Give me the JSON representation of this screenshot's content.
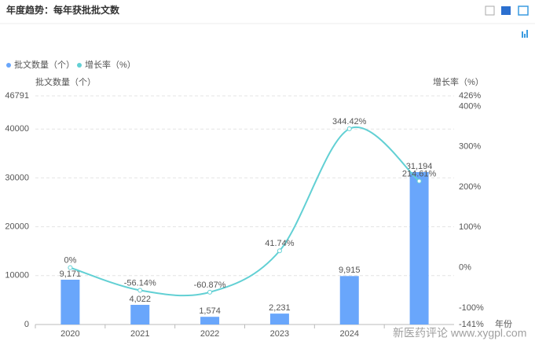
{
  "chart_data": {
    "type": "bar-line",
    "title": "年度趋势：每年获批批文数",
    "ylabel": "批文数量（个）",
    "y2label": "增长率（%）",
    "xlabel": "年份",
    "watermark": "新医药评论 www.xygpl.com",
    "categories": [
      "2020",
      "2021",
      "2022",
      "2023",
      "2024",
      null
    ],
    "series": [
      {
        "name": "批文数量（个）",
        "type": "bar",
        "color": "#69a6fb",
        "values": [
          9171,
          4022,
          1574,
          2231,
          9915,
          31194
        ],
        "value_labels": [
          "9,171",
          "4,022",
          "1,574",
          "2,231",
          "9,915",
          "31,194"
        ]
      },
      {
        "name": "增长率（%）",
        "type": "line",
        "axis": "y2",
        "color": "#62d0d4",
        "values": [
          0,
          -56.14,
          -60.87,
          41.74,
          344.42,
          214.61
        ],
        "value_labels": [
          "0%",
          "-56.14%",
          "-60.87%",
          "41.74%",
          "344.42%",
          "214.61%"
        ]
      }
    ],
    "ylim": [
      0,
      46791
    ],
    "yticks": [
      0,
      10000,
      20000,
      30000,
      40000,
      46791
    ],
    "y2lim": [
      -141,
      426
    ],
    "y2ticks": [
      {
        "value": -141,
        "label": "-141%"
      },
      {
        "value": -100,
        "label": "-100%"
      },
      {
        "value": 0,
        "label": "0%"
      },
      {
        "value": 100,
        "label": "100%"
      },
      {
        "value": 200,
        "label": "200%"
      },
      {
        "value": 300,
        "label": "300%"
      },
      {
        "value": 400,
        "label": "400%"
      },
      {
        "value": 426,
        "label": "426%"
      }
    ],
    "grid": true,
    "legend": "top-left"
  }
}
